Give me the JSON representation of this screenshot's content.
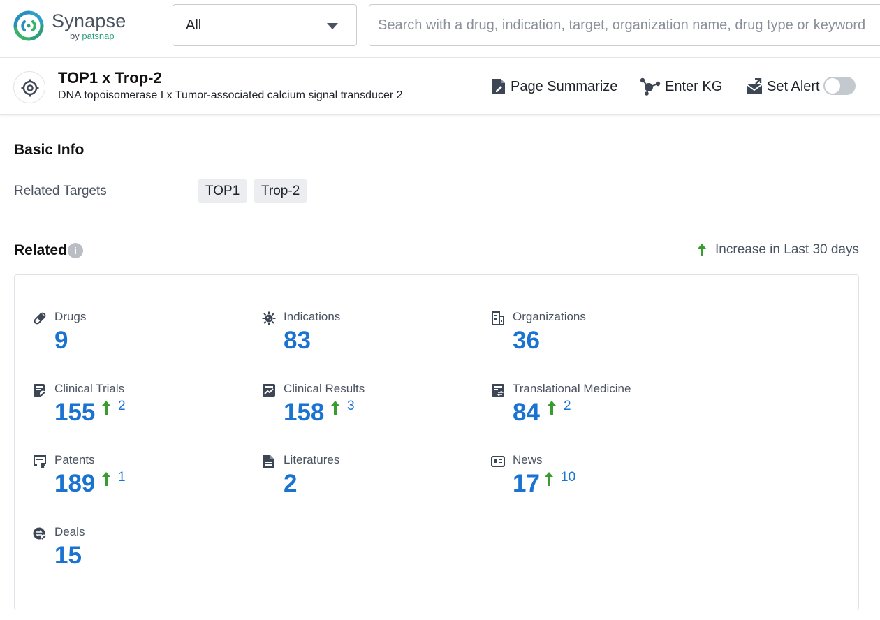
{
  "app": {
    "name": "Synapse",
    "by_prefix": "by",
    "by_brand": "patsnap"
  },
  "search": {
    "scope_value": "All",
    "placeholder": "Search with a drug, indication, target, organization name, drug type or keyword",
    "value": ""
  },
  "entity": {
    "title": "TOP1 x Trop-2",
    "subtitle": "DNA topoisomerase I x Tumor-associated calcium signal transducer 2"
  },
  "actions": {
    "page_summarize": "Page Summarize",
    "enter_kg": "Enter KG",
    "set_alert": "Set Alert",
    "set_alert_on": false
  },
  "basic_info": {
    "title": "Basic Info",
    "related_targets_label": "Related Targets",
    "targets": [
      "TOP1",
      "Trop-2"
    ]
  },
  "related": {
    "title": "Related",
    "info_icon": "i",
    "legend": "Increase in Last 30 days",
    "items": [
      {
        "icon": "pill-icon",
        "label": "Drugs",
        "count": "9",
        "increase": ""
      },
      {
        "icon": "virus-icon",
        "label": "Indications",
        "count": "83",
        "increase": ""
      },
      {
        "icon": "building-icon",
        "label": "Organizations",
        "count": "36",
        "increase": ""
      },
      {
        "icon": "clinical-trials-icon",
        "label": "Clinical Trials",
        "count": "155",
        "increase": "2"
      },
      {
        "icon": "chart-doc-icon",
        "label": "Clinical Results",
        "count": "158",
        "increase": "3"
      },
      {
        "icon": "translational-icon",
        "label": "Translational Medicine",
        "count": "84",
        "increase": "2"
      },
      {
        "icon": "patent-icon",
        "label": "Patents",
        "count": "189",
        "increase": "1"
      },
      {
        "icon": "document-icon",
        "label": "Literatures",
        "count": "2",
        "increase": ""
      },
      {
        "icon": "newspaper-icon",
        "label": "News",
        "count": "17",
        "increase": "10"
      },
      {
        "icon": "deals-icon",
        "label": "Deals",
        "count": "15",
        "increase": ""
      }
    ]
  },
  "colors": {
    "accent": "#1a73d1",
    "increase": "#3a9c2e",
    "brand_green": "#2e9e7d"
  }
}
